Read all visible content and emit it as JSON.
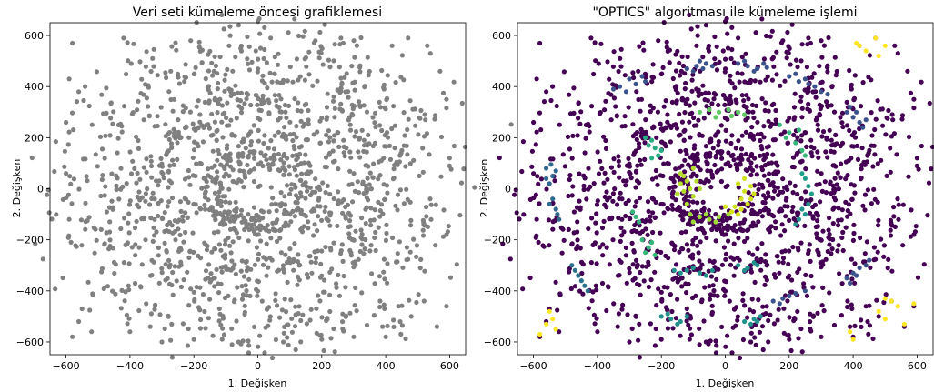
{
  "chart_data": [
    {
      "type": "scatter",
      "title": "Veri seti kümeleme öncesi grafiklemesi",
      "xlabel": "1. Değişken",
      "ylabel": "2. Değişken",
      "xlim": [
        -650,
        650
      ],
      "ylim": [
        -650,
        650
      ],
      "x_ticks": [
        -600,
        -400,
        -200,
        0,
        200,
        400,
        600
      ],
      "y_ticks": [
        -600,
        -400,
        -200,
        0,
        200,
        400,
        600
      ],
      "x_tick_labels": [
        "−600",
        "−400",
        "−200",
        "0",
        "200",
        "400",
        "600"
      ],
      "y_tick_labels": [
        "−600",
        "−400",
        "−200",
        "0",
        "200",
        "400",
        "600"
      ],
      "grid": false,
      "color": "#808080",
      "rings": [
        {
          "radius": 150,
          "count": 340
        },
        {
          "radius": 330,
          "count": 560
        },
        {
          "radius": 520,
          "count": 700
        }
      ],
      "noise": [
        [
          -580,
          570
        ],
        [
          -420,
          590
        ],
        [
          -210,
          580
        ],
        [
          -90,
          560
        ],
        [
          40,
          590
        ],
        [
          180,
          580
        ],
        [
          260,
          590
        ],
        [
          300,
          580
        ],
        [
          420,
          560
        ],
        [
          470,
          590
        ],
        [
          540,
          530
        ],
        [
          570,
          460
        ],
        [
          -590,
          430
        ],
        [
          -560,
          380
        ],
        [
          590,
          350
        ],
        [
          -600,
          260
        ],
        [
          -580,
          -580
        ],
        [
          -560,
          -520
        ],
        [
          -550,
          -470
        ],
        [
          -400,
          -560
        ],
        [
          -300,
          -600
        ],
        [
          -200,
          -590
        ],
        [
          -60,
          -600
        ],
        [
          80,
          -600
        ],
        [
          200,
          -590
        ],
        [
          300,
          -580
        ],
        [
          390,
          -540
        ],
        [
          400,
          -580
        ],
        [
          440,
          -460
        ],
        [
          480,
          -500
        ],
        [
          520,
          -440
        ],
        [
          560,
          -540
        ],
        [
          590,
          -460
        ],
        [
          -600,
          60
        ],
        [
          -590,
          -120
        ],
        [
          600,
          120
        ],
        [
          590,
          -180
        ],
        [
          -520,
          -560
        ],
        [
          530,
          560
        ]
      ]
    },
    {
      "type": "scatter",
      "title": "\"OPTICS\" algoritması ile kümeleme işlemi",
      "xlabel": "1. Değişken",
      "ylabel": "2. Değişken",
      "xlim": [
        -650,
        650
      ],
      "ylim": [
        -650,
        650
      ],
      "x_ticks": [
        -600,
        -400,
        -200,
        0,
        200,
        400,
        600
      ],
      "y_ticks": [
        -600,
        -400,
        -200,
        0,
        200,
        400,
        600
      ],
      "x_tick_labels": [
        "−600",
        "−400",
        "−200",
        "0",
        "200",
        "400",
        "600"
      ],
      "y_tick_labels": [
        "−600",
        "−400",
        "−200",
        "0",
        "200",
        "400",
        "600"
      ],
      "grid": false,
      "noise_color": "#440154",
      "clusters": [
        {
          "color": "#3b528b",
          "points": [
            [
              -330,
              400
            ],
            [
              -300,
              430
            ],
            [
              -280,
              410
            ],
            [
              -260,
              440
            ],
            [
              -310,
              380
            ],
            [
              -250,
              420
            ],
            [
              -350,
              390
            ]
          ]
        },
        {
          "color": "#3b528b",
          "points": [
            [
              -120,
              470
            ],
            [
              -90,
              480
            ],
            [
              -60,
              490
            ],
            [
              -100,
              460
            ],
            [
              -70,
              470
            ],
            [
              -40,
              480
            ],
            [
              -80,
              500
            ]
          ]
        },
        {
          "color": "#3b528b",
          "points": [
            [
              40,
              490
            ],
            [
              70,
              480
            ],
            [
              100,
              470
            ],
            [
              120,
              490
            ],
            [
              60,
              500
            ],
            [
              90,
              460
            ],
            [
              130,
              475
            ]
          ]
        },
        {
          "color": "#3b528b",
          "points": [
            [
              200,
              440
            ],
            [
              230,
              420
            ],
            [
              260,
              410
            ],
            [
              220,
              450
            ],
            [
              250,
              430
            ],
            [
              280,
              400
            ],
            [
              300,
              380
            ],
            [
              320,
              370
            ]
          ]
        },
        {
          "color": "#3b528b",
          "points": [
            [
              380,
              300
            ],
            [
              400,
              280
            ],
            [
              420,
              260
            ],
            [
              390,
              320
            ],
            [
              410,
              300
            ],
            [
              430,
              240
            ],
            [
              440,
              270
            ]
          ]
        },
        {
          "color": "#31688e",
          "points": [
            [
              -560,
              80
            ],
            [
              -540,
              50
            ],
            [
              -550,
              20
            ],
            [
              -530,
              70
            ],
            [
              -560,
              40
            ],
            [
              -545,
              95
            ]
          ]
        },
        {
          "color": "#31688e",
          "points": [
            [
              -540,
              -40
            ],
            [
              -530,
              -80
            ],
            [
              -520,
              -120
            ],
            [
              -550,
              -60
            ],
            [
              -525,
              -100
            ]
          ]
        },
        {
          "color": "#2c728e",
          "points": [
            [
              -480,
              -300
            ],
            [
              -460,
              -340
            ],
            [
              -440,
              -380
            ],
            [
              -470,
              -320
            ],
            [
              -450,
              -360
            ],
            [
              -430,
              -400
            ]
          ]
        },
        {
          "color": "#3b528b",
          "points": [
            [
              380,
              -350
            ],
            [
              400,
              -330
            ],
            [
              420,
              -310
            ],
            [
              440,
              -300
            ],
            [
              410,
              -340
            ],
            [
              390,
              -370
            ],
            [
              450,
              -280
            ]
          ]
        },
        {
          "color": "#3b528b",
          "points": [
            [
              150,
              -440
            ],
            [
              180,
              -430
            ],
            [
              200,
              -420
            ],
            [
              170,
              -450
            ],
            [
              220,
              -410
            ],
            [
              250,
              -400
            ]
          ]
        },
        {
          "color": "#21918c",
          "points": [
            [
              -200,
              -500
            ],
            [
              -170,
              -510
            ],
            [
              -140,
              -520
            ],
            [
              -120,
              -500
            ],
            [
              -180,
              -490
            ],
            [
              -150,
              -530
            ]
          ]
        },
        {
          "color": "#21918c",
          "points": [
            [
              60,
              -520
            ],
            [
              90,
              -510
            ],
            [
              110,
              -500
            ],
            [
              80,
              -530
            ],
            [
              100,
              -520
            ]
          ]
        },
        {
          "color": "#27ad81",
          "points": [
            [
              -230,
              190
            ],
            [
              -220,
              160
            ],
            [
              -210,
              130
            ],
            [
              -240,
              170
            ],
            [
              -200,
              150
            ],
            [
              -250,
              200
            ],
            [
              -230,
              120
            ]
          ]
        },
        {
          "color": "#5ec962",
          "points": [
            [
              -80,
              300
            ],
            [
              -50,
              310
            ],
            [
              -20,
              300
            ],
            [
              10,
              310
            ],
            [
              40,
              300
            ],
            [
              60,
              290
            ],
            [
              -30,
              280
            ],
            [
              20,
              285
            ]
          ]
        },
        {
          "color": "#35b779",
          "points": [
            [
              170,
              250
            ],
            [
              200,
              220
            ],
            [
              220,
              180
            ],
            [
              240,
              150
            ],
            [
              190,
              200
            ],
            [
              230,
              230
            ],
            [
              250,
              130
            ]
          ]
        },
        {
          "color": "#21918c",
          "points": [
            [
              240,
              -80
            ],
            [
              250,
              -100
            ],
            [
              230,
              -120
            ],
            [
              260,
              -60
            ],
            [
              220,
              -140
            ]
          ]
        },
        {
          "color": "#1f9e89",
          "points": [
            [
              260,
              10
            ],
            [
              250,
              40
            ],
            [
              270,
              -20
            ],
            [
              240,
              60
            ]
          ]
        },
        {
          "color": "#21918c",
          "points": [
            [
              -160,
              -320
            ],
            [
              -120,
              -320
            ],
            [
              -80,
              -330
            ],
            [
              -40,
              -320
            ],
            [
              -100,
              -310
            ],
            [
              -60,
              -340
            ],
            [
              -140,
              -330
            ]
          ]
        },
        {
          "color": "#21918c",
          "points": [
            [
              40,
              -300
            ],
            [
              70,
              -310
            ],
            [
              100,
              -300
            ],
            [
              60,
              -320
            ],
            [
              90,
              -290
            ]
          ]
        },
        {
          "color": "#35b779",
          "points": [
            [
              -260,
              -200
            ],
            [
              -240,
              -230
            ],
            [
              -220,
              -260
            ],
            [
              -250,
              -250
            ],
            [
              -230,
              -210
            ]
          ]
        },
        {
          "color": "#35b779",
          "points": [
            [
              -280,
              -110
            ],
            [
              -270,
              -130
            ],
            [
              -290,
              -90
            ]
          ]
        },
        {
          "color": "#b5de2b",
          "points": [
            [
              -140,
              20
            ],
            [
              -130,
              -10
            ],
            [
              -120,
              30
            ],
            [
              -150,
              -20
            ],
            [
              -110,
              0
            ],
            [
              -130,
              50
            ],
            [
              -100,
              -30
            ],
            [
              -120,
              -60
            ],
            [
              -90,
              30
            ],
            [
              -140,
              60
            ],
            [
              -80,
              0
            ],
            [
              -100,
              80
            ]
          ]
        },
        {
          "color": "#a0da39",
          "points": [
            [
              -110,
              -100
            ],
            [
              -80,
              -110
            ],
            [
              -50,
              -120
            ],
            [
              -20,
              -110
            ],
            [
              10,
              -100
            ],
            [
              -60,
              -100
            ],
            [
              -100,
              -130
            ],
            [
              -30,
              -130
            ]
          ]
        },
        {
          "color": "#d0e11c",
          "points": [
            [
              40,
              20
            ],
            [
              60,
              -10
            ],
            [
              80,
              10
            ],
            [
              50,
              -40
            ],
            [
              70,
              -60
            ],
            [
              90,
              -20
            ],
            [
              30,
              -70
            ],
            [
              60,
              40
            ],
            [
              80,
              -40
            ]
          ]
        },
        {
          "color": "#d8e219",
          "points": [
            [
              20,
              -90
            ],
            [
              50,
              -80
            ],
            [
              0,
              -70
            ],
            [
              40,
              -100
            ]
          ]
        },
        {
          "color": "#fde725",
          "points": [
            [
              420,
              560
            ],
            [
              440,
              540
            ],
            [
              470,
              590
            ],
            [
              480,
              520
            ],
            [
              500,
              560
            ],
            [
              410,
              570
            ]
          ]
        },
        {
          "color": "#fde725",
          "points": [
            [
              -580,
              -570
            ],
            [
              -560,
              -530
            ],
            [
              -550,
              -480
            ],
            [
              -530,
              -550
            ],
            [
              -540,
              -510
            ]
          ]
        },
        {
          "color": "#fde725",
          "points": [
            [
              390,
              -560
            ],
            [
              400,
              -590
            ],
            [
              480,
              -480
            ],
            [
              500,
              -430
            ],
            [
              520,
              -440
            ],
            [
              540,
              -460
            ],
            [
              560,
              -530
            ],
            [
              590,
              -450
            ],
            [
              500,
              -510
            ]
          ]
        }
      ]
    }
  ]
}
